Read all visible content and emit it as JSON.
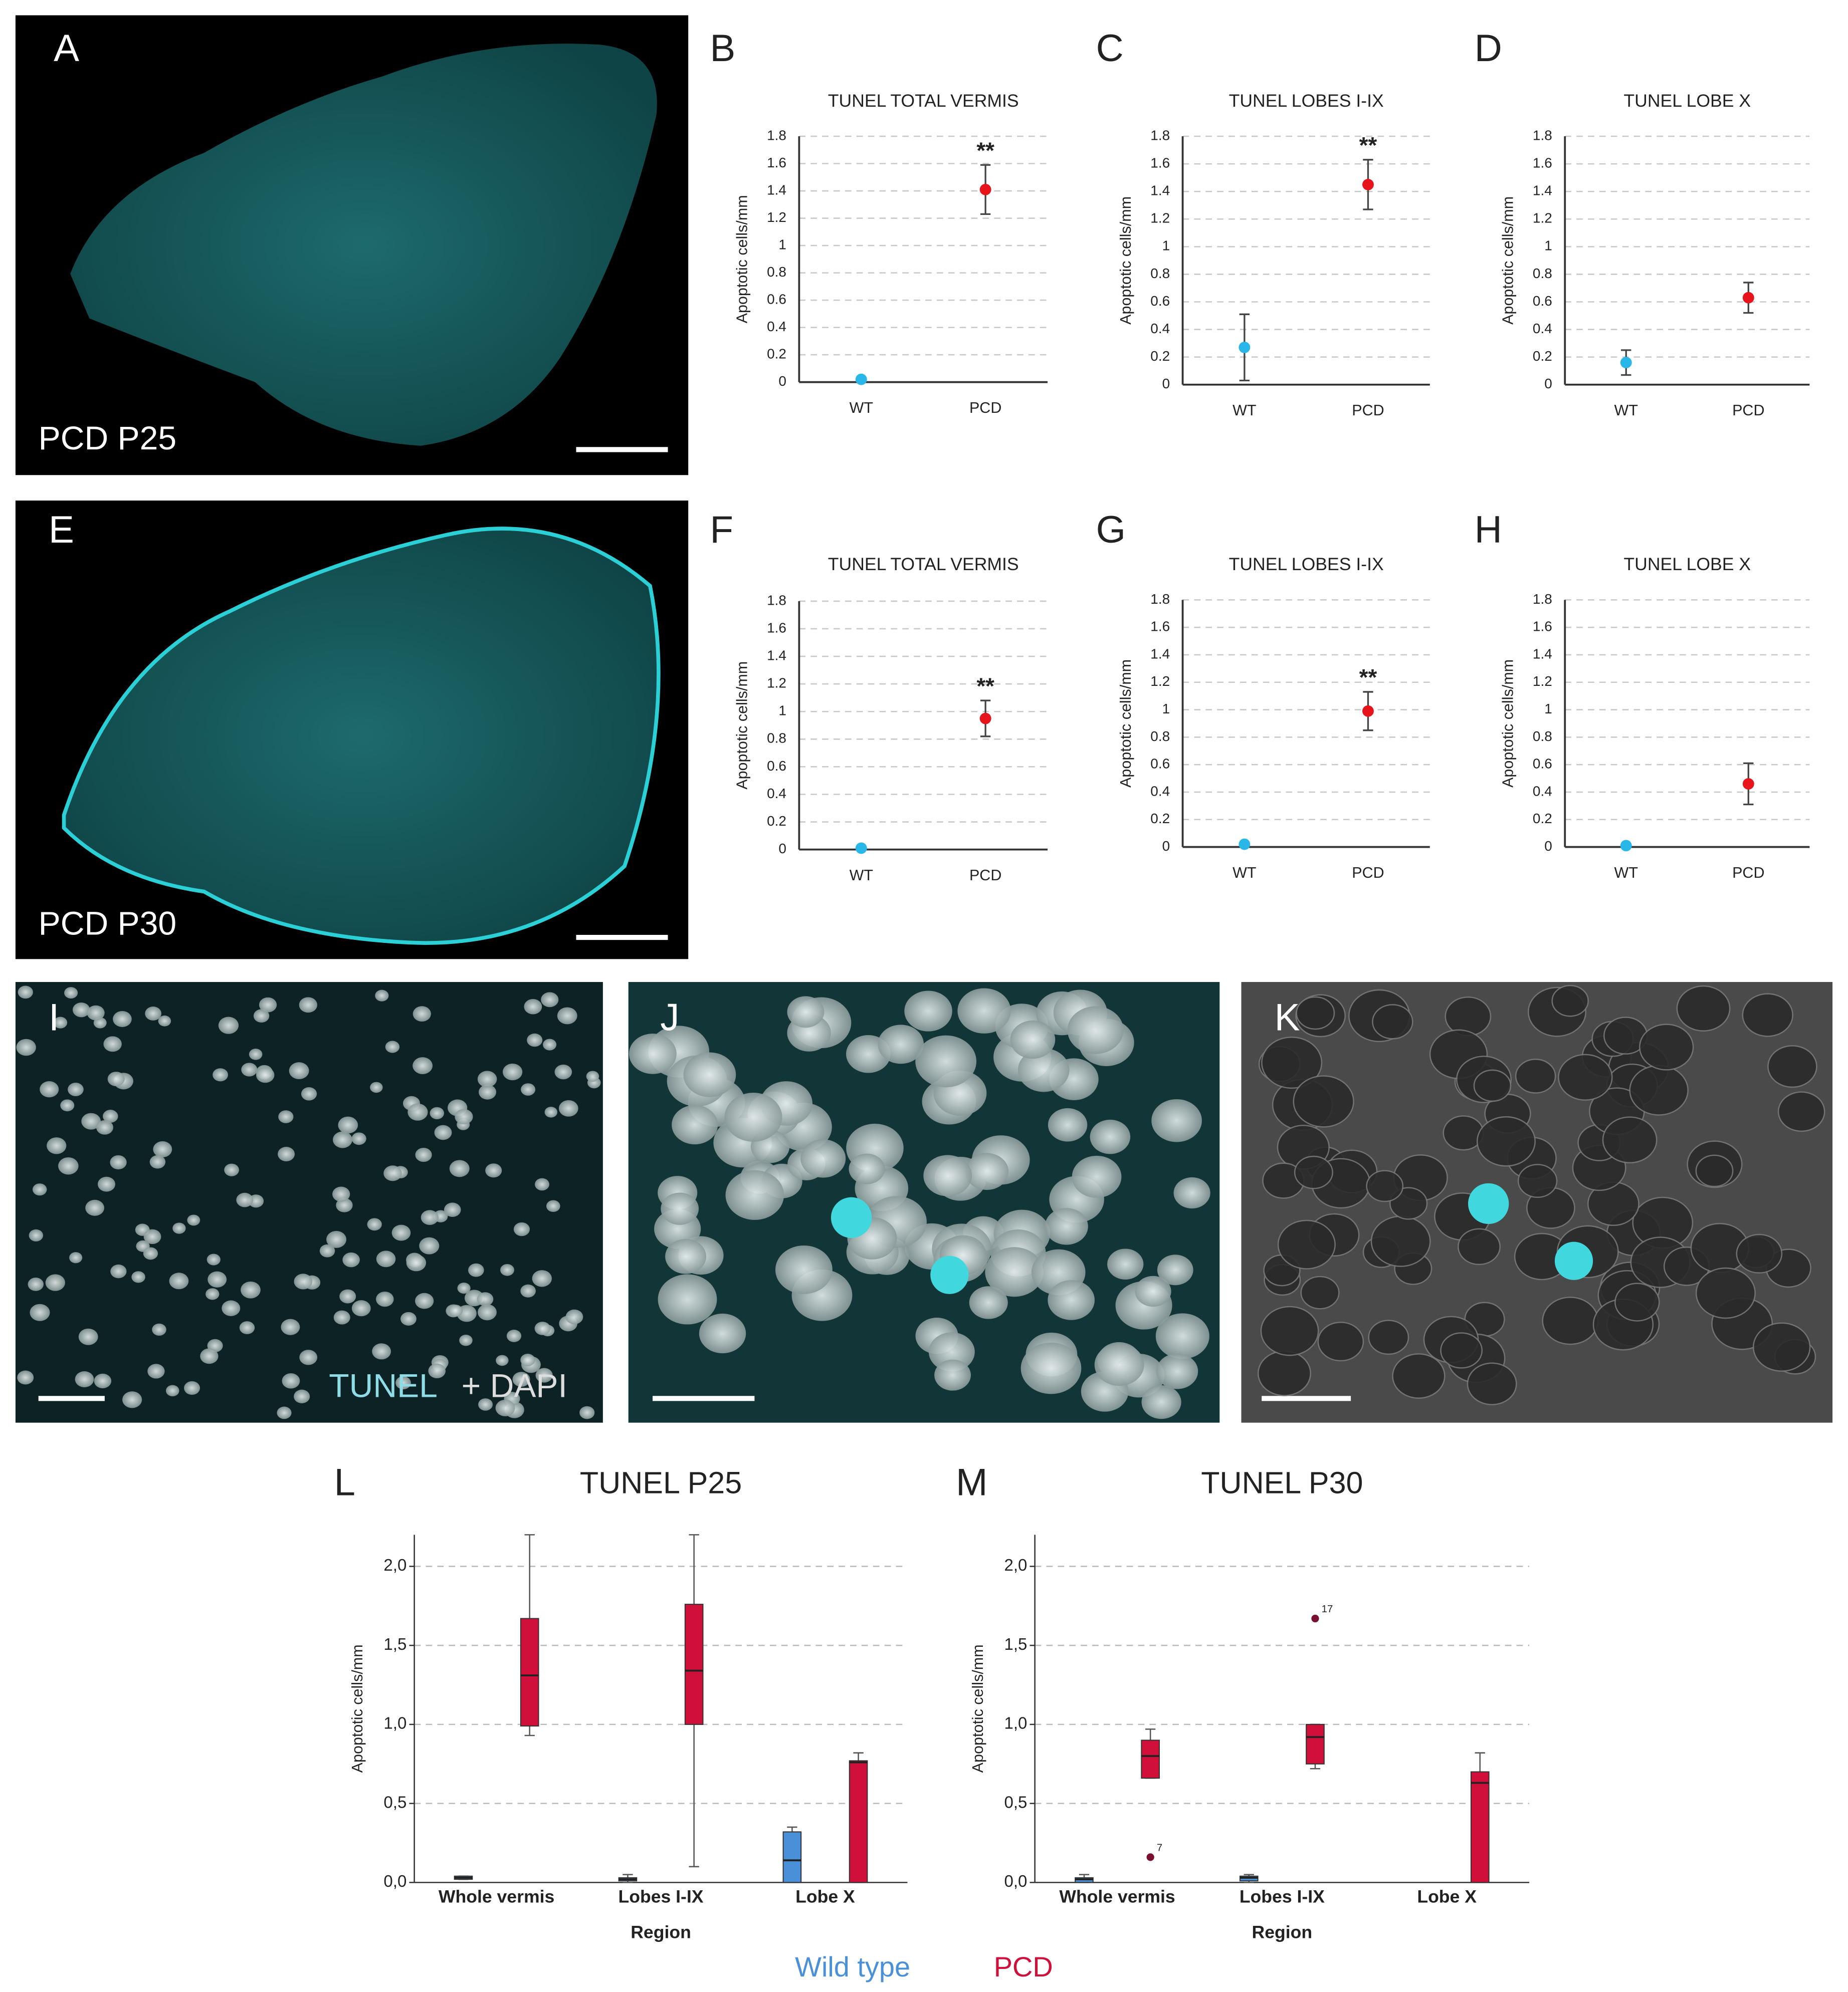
{
  "images": [
    {
      "letter": "A",
      "caption": "PCD P25"
    },
    {
      "letter": "E",
      "caption": "PCD P30"
    },
    {
      "letter": "I",
      "caption": "TUNEL",
      "caption2": "+ DAPI"
    },
    {
      "letter": "J"
    },
    {
      "letter": "K"
    }
  ],
  "chart_data": [
    {
      "type": "point",
      "letter": "B",
      "title": "TUNEL TOTAL VERMIS",
      "y_label": "Apoptotic cells/mm",
      "categories": [
        "WT",
        "PCD"
      ],
      "values": [
        0.02,
        1.41
      ],
      "errors": [
        0.01,
        0.18
      ],
      "colors": [
        "#29b6e8",
        "#e8141c"
      ],
      "annotations": [
        "**"
      ],
      "ylim": [
        0,
        1.8
      ],
      "yticks": [
        0,
        0.2,
        0.4,
        0.6,
        0.8,
        1,
        1.2,
        1.4,
        1.6,
        1.8
      ],
      "grid": true
    },
    {
      "type": "point",
      "letter": "C",
      "title": "TUNEL LOBES I-IX",
      "y_label": "Apoptotic cells/mm",
      "categories": [
        "WT",
        "PCD"
      ],
      "values": [
        0.27,
        1.45
      ],
      "errors": [
        0.24,
        0.18
      ],
      "colors": [
        "#29b6e8",
        "#e8141c"
      ],
      "annotations": [
        "**"
      ],
      "ylim": [
        0,
        1.8
      ],
      "yticks": [
        0,
        0.2,
        0.4,
        0.6,
        0.8,
        1,
        1.2,
        1.4,
        1.6,
        1.8
      ],
      "grid": true
    },
    {
      "type": "point",
      "letter": "D",
      "title": "TUNEL LOBE X",
      "y_label": "Apoptotic cells/mm",
      "categories": [
        "WT",
        "PCD"
      ],
      "values": [
        0.16,
        0.63
      ],
      "errors": [
        0.09,
        0.11
      ],
      "colors": [
        "#29b6e8",
        "#e8141c"
      ],
      "ylim": [
        0,
        1.8
      ],
      "yticks": [
        0,
        0.2,
        0.4,
        0.6,
        0.8,
        1,
        1.2,
        1.4,
        1.6,
        1.8
      ],
      "grid": true
    },
    {
      "type": "point",
      "letter": "F",
      "title": "TUNEL TOTAL VERMIS",
      "y_label": "Apoptotic cells/mm",
      "categories": [
        "WT",
        "PCD"
      ],
      "values": [
        0.01,
        0.95
      ],
      "errors": [
        0,
        0.13
      ],
      "colors": [
        "#29b6e8",
        "#e8141c"
      ],
      "annotations": [
        "**"
      ],
      "ylim": [
        0,
        1.8
      ],
      "yticks": [
        0,
        0.2,
        0.4,
        0.6,
        0.8,
        1,
        1.2,
        1.4,
        1.6,
        1.8
      ],
      "grid": true
    },
    {
      "type": "point",
      "letter": "G",
      "title": "TUNEL LOBES I-IX",
      "y_label": "Apoptotic cells/mm",
      "categories": [
        "WT",
        "PCD"
      ],
      "values": [
        0.02,
        0.99
      ],
      "errors": [
        0,
        0.14
      ],
      "colors": [
        "#29b6e8",
        "#e8141c"
      ],
      "annotations": [
        "**"
      ],
      "ylim": [
        0,
        1.8
      ],
      "yticks": [
        0,
        0.2,
        0.4,
        0.6,
        0.8,
        1,
        1.2,
        1.4,
        1.6,
        1.8
      ],
      "grid": true
    },
    {
      "type": "point",
      "letter": "H",
      "title": "TUNEL LOBE X",
      "y_label": "Apoptotic cells/mm",
      "categories": [
        "WT",
        "PCD"
      ],
      "values": [
        0.01,
        0.46
      ],
      "errors": [
        0,
        0.15
      ],
      "colors": [
        "#29b6e8",
        "#e8141c"
      ],
      "ylim": [
        0,
        1.8
      ],
      "yticks": [
        0,
        0.2,
        0.4,
        0.6,
        0.8,
        1,
        1.2,
        1.4,
        1.6,
        1.8
      ],
      "grid": true
    },
    {
      "type": "box",
      "letter": "L",
      "title": "TUNEL P25",
      "x_label": "Region",
      "y_label": "Apoptotic cells/mm",
      "categories": [
        "Whole vermis",
        "Lobes I-IX",
        "Lobe X"
      ],
      "series": [
        {
          "name": "Wild type",
          "color": "#4a90d9",
          "boxes": [
            {
              "min": 0.02,
              "q1": 0.02,
              "median": 0.03,
              "q3": 0.04,
              "max": 0.04
            },
            {
              "min": 0,
              "q1": 0.01,
              "median": 0.02,
              "q3": 0.03,
              "max": 0.05
            },
            {
              "min": 0,
              "q1": 0,
              "median": 0.14,
              "q3": 0.32,
              "max": 0.35
            }
          ]
        },
        {
          "name": "PCD",
          "color": "#d0103a",
          "boxes": [
            {
              "min": 0.93,
              "q1": 0.99,
              "median": 1.31,
              "q3": 1.67,
              "max": 2.2
            },
            {
              "min": 0.1,
              "q1": 1.0,
              "median": 1.34,
              "q3": 1.76,
              "max": 2.2
            },
            {
              "min": 0,
              "q1": 0,
              "median": 0.76,
              "q3": 0.77,
              "max": 0.82
            }
          ]
        }
      ],
      "ylim": [
        0,
        2.2
      ],
      "yticks": [
        {
          "value": 0,
          "label": "0,0"
        },
        {
          "value": 0.5,
          "label": "0,5"
        },
        {
          "value": 1,
          "label": "1,0"
        },
        {
          "value": 1.5,
          "label": "1,5"
        },
        {
          "value": 2,
          "label": "2,0"
        }
      ],
      "grid": true
    },
    {
      "type": "box",
      "letter": "M",
      "title": "TUNEL P30",
      "x_label": "Region",
      "y_label": "Apoptotic cells/mm",
      "categories": [
        "Whole vermis",
        "Lobes I-IX",
        "Lobe X"
      ],
      "series": [
        {
          "color": "#4a90d9",
          "boxes": [
            {
              "min": 0,
              "q1": 0,
              "median": 0.02,
              "q3": 0.03,
              "max": 0.05
            },
            {
              "min": 0,
              "q1": 0.01,
              "median": 0.03,
              "q3": 0.04,
              "max": 0.05
            },
            null
          ]
        },
        {
          "color": "#d0103a",
          "boxes": [
            {
              "min": 0.66,
              "q1": 0.66,
              "median": 0.8,
              "q3": 0.9,
              "max": 0.97
            },
            {
              "min": 0.72,
              "q1": 0.75,
              "median": 0.92,
              "q3": 1.0,
              "max": 1.0
            },
            {
              "min": 0,
              "q1": 0,
              "median": 0.63,
              "q3": 0.7,
              "max": 0.82
            }
          ],
          "outliers": [
            [
              {
                "value": 0.16,
                "label": "7"
              }
            ],
            [
              {
                "value": 1.67,
                "label": "17"
              }
            ],
            []
          ]
        }
      ],
      "ylim": [
        0,
        2.2
      ],
      "yticks": [
        {
          "value": 0,
          "label": "0,0"
        },
        {
          "value": 0.5,
          "label": "0,5"
        },
        {
          "value": 1,
          "label": "1,0"
        },
        {
          "value": 1.5,
          "label": "1,5"
        },
        {
          "value": 2,
          "label": "2,0"
        }
      ],
      "grid": true
    }
  ]
}
